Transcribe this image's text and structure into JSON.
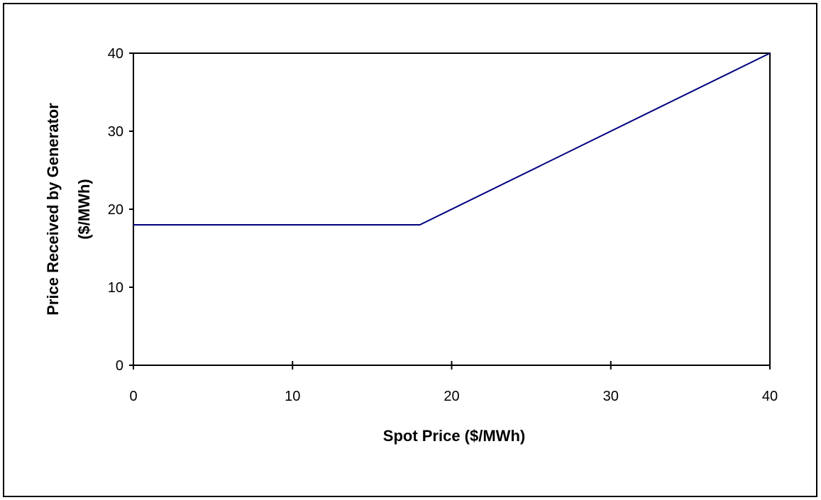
{
  "chart_data": {
    "type": "line",
    "title": "",
    "xlabel": "Spot Price ($/MWh)",
    "ylabel_line1": "Price Received by  Generator",
    "ylabel_line2": "($/MWh)",
    "xlim": [
      0,
      40
    ],
    "ylim": [
      0,
      40
    ],
    "xticks": [
      0,
      10,
      20,
      30,
      40
    ],
    "yticks": [
      0,
      10,
      20,
      30,
      40
    ],
    "grid": false,
    "legend": "none",
    "series": [
      {
        "x": [
          0,
          18,
          40
        ],
        "y": [
          18,
          18,
          40
        ],
        "color": "#000080"
      }
    ]
  }
}
